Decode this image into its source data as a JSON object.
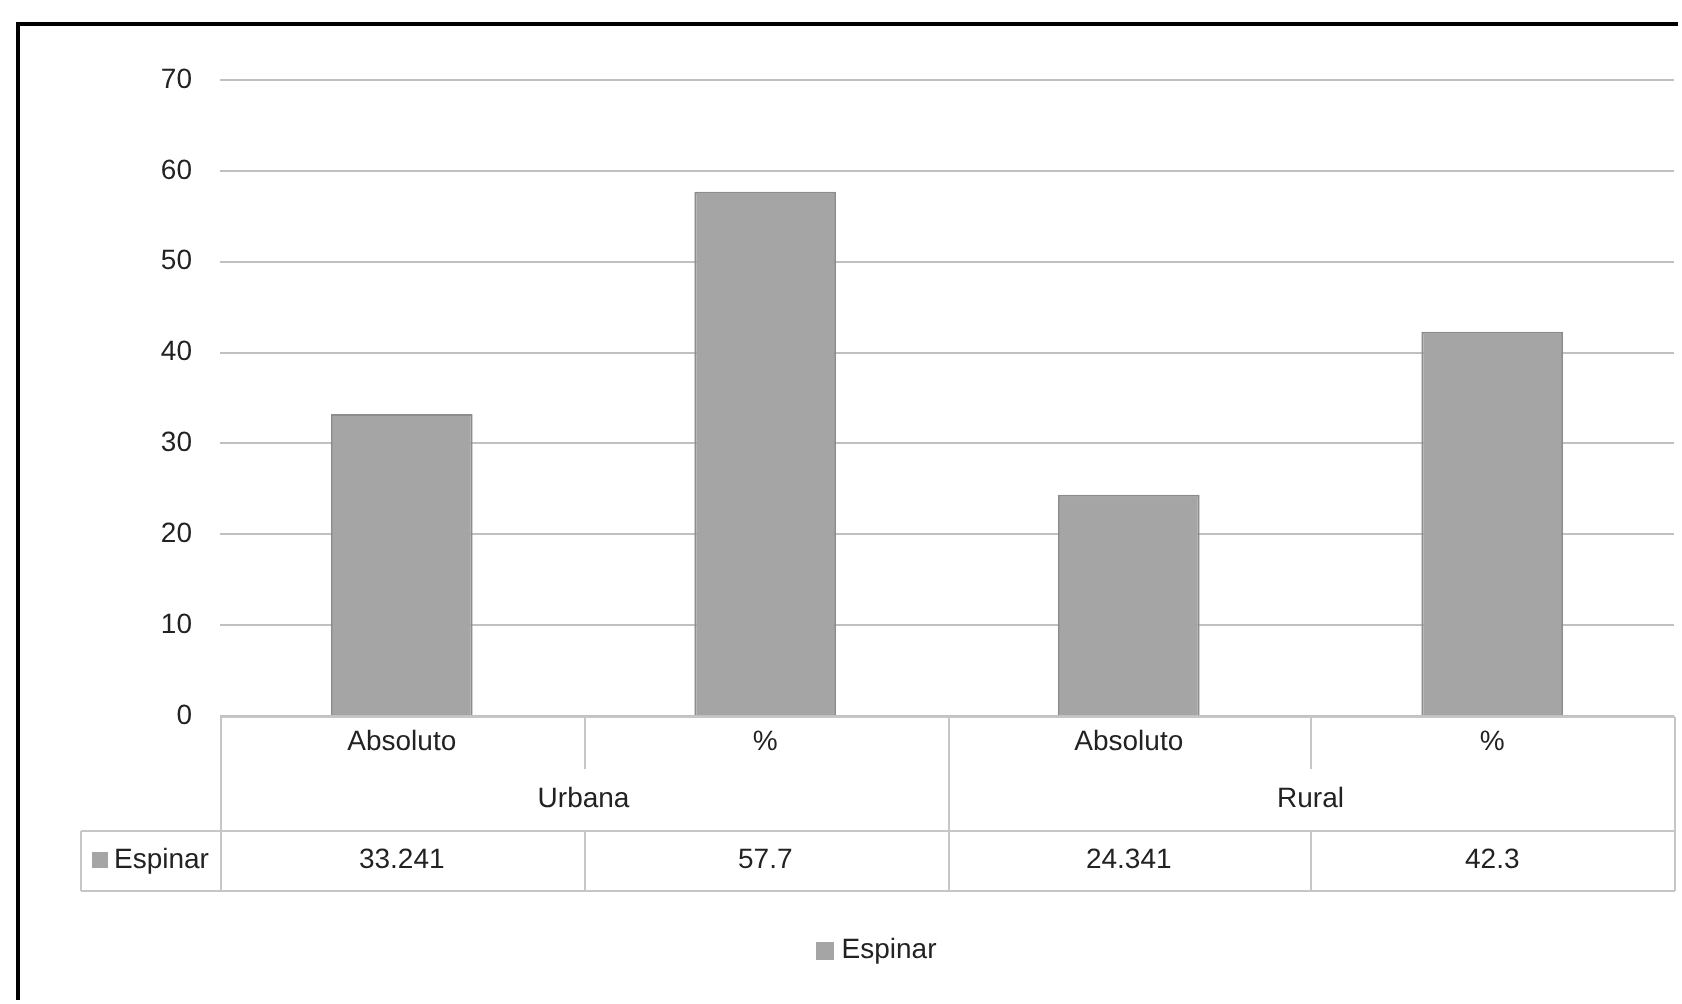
{
  "chart_data": {
    "type": "bar",
    "categories": [
      "Absoluto",
      "%",
      "Absoluto",
      "%"
    ],
    "series": [
      {
        "name": "Espinar",
        "color": "#a5a5a5",
        "values": [
          33.241,
          57.7,
          24.341,
          42.3
        ]
      }
    ],
    "annotations": [
      "Urbana",
      "Rural"
    ],
    "ylim": [
      0,
      70
    ],
    "yticks": [
      0,
      10,
      20,
      30,
      40,
      50,
      60,
      70
    ],
    "grid": "y",
    "legend": "bottom",
    "data_labels": true
  }
}
